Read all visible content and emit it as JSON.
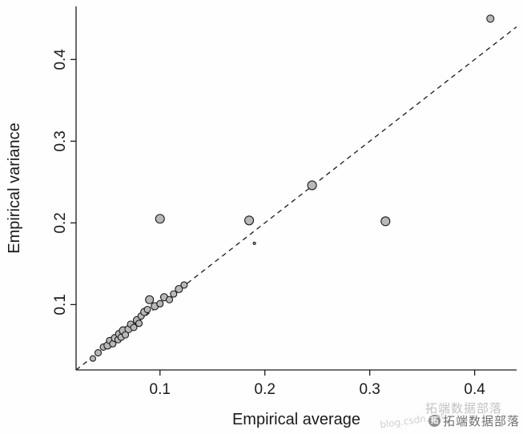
{
  "chart_data": {
    "type": "scatter",
    "title": "",
    "xlabel": "Empirical average",
    "ylabel": "Empirical variance",
    "xlim": [
      0.02,
      0.44
    ],
    "ylim": [
      0.02,
      0.465
    ],
    "xticks": [
      0.1,
      0.2,
      0.3,
      0.4
    ],
    "yticks": [
      0.1,
      0.2,
      0.3,
      0.4
    ],
    "grid": false,
    "legend": "none",
    "reference_line": {
      "type": "identity",
      "style": "dashed",
      "color": "#1a1a1a"
    },
    "point_fill": "#b8b8b8",
    "point_stroke": "#1a1a1a",
    "points": [
      {
        "x": 0.036,
        "y": 0.034,
        "r": 3.5
      },
      {
        "x": 0.041,
        "y": 0.041,
        "r": 4
      },
      {
        "x": 0.046,
        "y": 0.048,
        "r": 4
      },
      {
        "x": 0.05,
        "y": 0.05,
        "r": 4.5
      },
      {
        "x": 0.052,
        "y": 0.056,
        "r": 4
      },
      {
        "x": 0.055,
        "y": 0.052,
        "r": 4
      },
      {
        "x": 0.057,
        "y": 0.059,
        "r": 4.5
      },
      {
        "x": 0.06,
        "y": 0.057,
        "r": 4
      },
      {
        "x": 0.061,
        "y": 0.064,
        "r": 4.5
      },
      {
        "x": 0.063,
        "y": 0.06,
        "r": 4
      },
      {
        "x": 0.065,
        "y": 0.068,
        "r": 5
      },
      {
        "x": 0.067,
        "y": 0.063,
        "r": 4
      },
      {
        "x": 0.07,
        "y": 0.07,
        "r": 4.5
      },
      {
        "x": 0.072,
        "y": 0.076,
        "r": 4
      },
      {
        "x": 0.075,
        "y": 0.072,
        "r": 4
      },
      {
        "x": 0.078,
        "y": 0.081,
        "r": 4.5
      },
      {
        "x": 0.08,
        "y": 0.077,
        "r": 4
      },
      {
        "x": 0.082,
        "y": 0.086,
        "r": 4
      },
      {
        "x": 0.085,
        "y": 0.091,
        "r": 4.5
      },
      {
        "x": 0.088,
        "y": 0.094,
        "r": 4
      },
      {
        "x": 0.09,
        "y": 0.106,
        "r": 5
      },
      {
        "x": 0.095,
        "y": 0.098,
        "r": 4.5
      },
      {
        "x": 0.1,
        "y": 0.101,
        "r": 4
      },
      {
        "x": 0.104,
        "y": 0.109,
        "r": 4.5
      },
      {
        "x": 0.109,
        "y": 0.106,
        "r": 4
      },
      {
        "x": 0.113,
        "y": 0.113,
        "r": 4
      },
      {
        "x": 0.118,
        "y": 0.119,
        "r": 4.5
      },
      {
        "x": 0.123,
        "y": 0.124,
        "r": 4
      },
      {
        "x": 0.1,
        "y": 0.205,
        "r": 5.5
      },
      {
        "x": 0.185,
        "y": 0.203,
        "r": 5.5
      },
      {
        "x": 0.19,
        "y": 0.175,
        "r": 1.5
      },
      {
        "x": 0.245,
        "y": 0.246,
        "r": 5.5
      },
      {
        "x": 0.315,
        "y": 0.202,
        "r": 5.5
      },
      {
        "x": 0.415,
        "y": 0.45,
        "r": 4.5
      }
    ]
  },
  "watermark": {
    "text": "拓端数据部落",
    "ghost_text": "拓端数据部落",
    "url_text": "blog.csdn.net",
    "logo_glyph": "拓"
  }
}
